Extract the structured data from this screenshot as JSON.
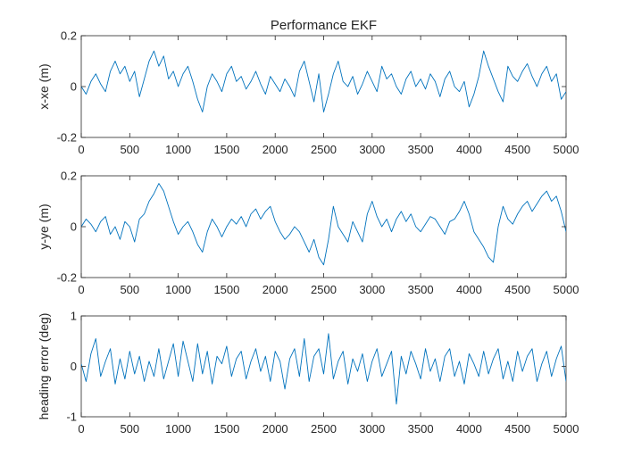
{
  "chart_data": [
    {
      "type": "line",
      "title": "Performance EKF",
      "xlabel": "",
      "ylabel": "x-xe (m)",
      "xlim": [
        0,
        5000
      ],
      "ylim": [
        -0.2,
        0.2
      ],
      "xticks": [
        0,
        500,
        1000,
        1500,
        2000,
        2500,
        3000,
        3500,
        4000,
        4500,
        5000
      ],
      "xtick_labels": [
        "0",
        "500",
        "1000",
        "1500",
        "2000",
        "2500",
        "3000",
        "3500",
        "4000",
        "4500",
        "5000"
      ],
      "yticks": [
        -0.2,
        0,
        0.2
      ],
      "ytick_labels": [
        "-0.2",
        "0",
        "0.2"
      ],
      "grid": false,
      "series": [
        {
          "color": "#0072BD",
          "x": [
            0,
            50,
            100,
            150,
            200,
            250,
            300,
            350,
            400,
            450,
            500,
            550,
            600,
            650,
            700,
            750,
            800,
            850,
            900,
            950,
            1000,
            1050,
            1100,
            1150,
            1200,
            1250,
            1300,
            1350,
            1400,
            1450,
            1500,
            1550,
            1600,
            1650,
            1700,
            1750,
            1800,
            1850,
            1900,
            1950,
            2000,
            2050,
            2100,
            2150,
            2200,
            2250,
            2300,
            2350,
            2400,
            2450,
            2500,
            2550,
            2600,
            2650,
            2700,
            2750,
            2800,
            2850,
            2900,
            2950,
            3000,
            3050,
            3100,
            3150,
            3200,
            3250,
            3300,
            3350,
            3400,
            3450,
            3500,
            3550,
            3600,
            3650,
            3700,
            3750,
            3800,
            3850,
            3900,
            3950,
            4000,
            4050,
            4100,
            4150,
            4200,
            4250,
            4300,
            4350,
            4400,
            4450,
            4500,
            4550,
            4600,
            4650,
            4700,
            4750,
            4800,
            4850,
            4900,
            4950,
            5000
          ],
          "y": [
            0.0,
            -0.03,
            0.02,
            0.05,
            0.01,
            -0.02,
            0.06,
            0.1,
            0.05,
            0.08,
            0.02,
            0.06,
            -0.04,
            0.03,
            0.1,
            0.14,
            0.08,
            0.12,
            0.03,
            0.06,
            0.0,
            0.05,
            0.08,
            0.02,
            -0.05,
            -0.1,
            0.0,
            0.05,
            0.02,
            -0.02,
            0.05,
            0.08,
            0.02,
            0.04,
            -0.01,
            0.02,
            0.06,
            0.01,
            -0.03,
            0.04,
            0.01,
            -0.02,
            0.03,
            0.0,
            -0.04,
            0.06,
            0.1,
            0.02,
            -0.06,
            0.05,
            -0.1,
            -0.03,
            0.05,
            0.1,
            0.02,
            0.0,
            0.04,
            -0.03,
            0.01,
            0.06,
            0.02,
            -0.02,
            0.08,
            0.03,
            0.05,
            0.0,
            -0.03,
            0.03,
            0.06,
            0.0,
            0.03,
            -0.01,
            0.05,
            0.02,
            -0.04,
            0.03,
            0.06,
            0.0,
            -0.02,
            0.02,
            -0.08,
            -0.03,
            0.04,
            0.14,
            0.08,
            0.03,
            -0.02,
            -0.06,
            0.08,
            0.04,
            0.02,
            0.06,
            0.09,
            0.04,
            0.0,
            0.05,
            0.08,
            0.02,
            0.05,
            -0.05,
            -0.02
          ]
        }
      ]
    },
    {
      "type": "line",
      "title": "",
      "xlabel": "",
      "ylabel": "y-ye (m)",
      "xlim": [
        0,
        5000
      ],
      "ylim": [
        -0.2,
        0.2
      ],
      "xticks": [
        0,
        500,
        1000,
        1500,
        2000,
        2500,
        3000,
        3500,
        4000,
        4500,
        5000
      ],
      "xtick_labels": [
        "0",
        "500",
        "1000",
        "1500",
        "2000",
        "2500",
        "3000",
        "3500",
        "4000",
        "4500",
        "5000"
      ],
      "yticks": [
        -0.2,
        0,
        0.2
      ],
      "ytick_labels": [
        "-0.2",
        "0",
        "0.2"
      ],
      "grid": false,
      "series": [
        {
          "color": "#0072BD",
          "x": [
            0,
            50,
            100,
            150,
            200,
            250,
            300,
            350,
            400,
            450,
            500,
            550,
            600,
            650,
            700,
            750,
            800,
            850,
            900,
            950,
            1000,
            1050,
            1100,
            1150,
            1200,
            1250,
            1300,
            1350,
            1400,
            1450,
            1500,
            1550,
            1600,
            1650,
            1700,
            1750,
            1800,
            1850,
            1900,
            1950,
            2000,
            2050,
            2100,
            2150,
            2200,
            2250,
            2300,
            2350,
            2400,
            2450,
            2500,
            2550,
            2600,
            2650,
            2700,
            2750,
            2800,
            2850,
            2900,
            2950,
            3000,
            3050,
            3100,
            3150,
            3200,
            3250,
            3300,
            3350,
            3400,
            3450,
            3500,
            3550,
            3600,
            3650,
            3700,
            3750,
            3800,
            3850,
            3900,
            3950,
            4000,
            4050,
            4100,
            4150,
            4200,
            4250,
            4300,
            4350,
            4400,
            4450,
            4500,
            4550,
            4600,
            4650,
            4700,
            4750,
            4800,
            4850,
            4900,
            4950,
            5000
          ],
          "y": [
            0.0,
            0.03,
            0.01,
            -0.02,
            0.02,
            0.04,
            -0.03,
            0.0,
            -0.05,
            0.02,
            0.0,
            -0.06,
            0.03,
            0.05,
            0.1,
            0.13,
            0.17,
            0.14,
            0.08,
            0.02,
            -0.03,
            0.0,
            0.02,
            -0.02,
            -0.07,
            -0.1,
            -0.02,
            0.03,
            0.0,
            -0.04,
            0.0,
            0.03,
            0.01,
            0.04,
            0.0,
            0.05,
            0.07,
            0.03,
            0.06,
            0.08,
            0.02,
            -0.02,
            -0.05,
            -0.03,
            0.0,
            -0.02,
            -0.06,
            -0.1,
            -0.05,
            -0.12,
            -0.15,
            -0.05,
            0.08,
            0.0,
            -0.03,
            -0.06,
            0.02,
            -0.02,
            -0.06,
            0.05,
            0.1,
            0.04,
            0.0,
            0.03,
            -0.02,
            0.03,
            0.06,
            0.02,
            0.05,
            0.0,
            -0.02,
            0.01,
            0.04,
            0.03,
            0.0,
            -0.03,
            0.02,
            0.03,
            0.06,
            0.1,
            0.05,
            -0.02,
            -0.05,
            -0.08,
            -0.12,
            -0.14,
            0.0,
            0.08,
            0.03,
            0.01,
            0.05,
            0.08,
            0.1,
            0.06,
            0.09,
            0.12,
            0.14,
            0.1,
            0.12,
            0.06,
            -0.02
          ]
        }
      ]
    },
    {
      "type": "line",
      "title": "",
      "xlabel": "",
      "ylabel": "heading error (deg)",
      "xlim": [
        0,
        5000
      ],
      "ylim": [
        -1,
        1
      ],
      "xticks": [
        0,
        500,
        1000,
        1500,
        2000,
        2500,
        3000,
        3500,
        4000,
        4500,
        5000
      ],
      "xtick_labels": [
        "0",
        "500",
        "1000",
        "1500",
        "2000",
        "2500",
        "3000",
        "3500",
        "4000",
        "4500",
        "5000"
      ],
      "yticks": [
        -1,
        0,
        1
      ],
      "ytick_labels": [
        "-1",
        "0",
        "1"
      ],
      "grid": false,
      "series": [
        {
          "color": "#0072BD",
          "x": [
            0,
            50,
            100,
            150,
            200,
            250,
            300,
            350,
            400,
            450,
            500,
            550,
            600,
            650,
            700,
            750,
            800,
            850,
            900,
            950,
            1000,
            1050,
            1100,
            1150,
            1200,
            1250,
            1300,
            1350,
            1400,
            1450,
            1500,
            1550,
            1600,
            1650,
            1700,
            1750,
            1800,
            1850,
            1900,
            1950,
            2000,
            2050,
            2100,
            2150,
            2200,
            2250,
            2300,
            2350,
            2400,
            2450,
            2500,
            2550,
            2600,
            2650,
            2700,
            2750,
            2800,
            2850,
            2900,
            2950,
            3000,
            3050,
            3100,
            3150,
            3200,
            3250,
            3300,
            3350,
            3400,
            3450,
            3500,
            3550,
            3600,
            3650,
            3700,
            3750,
            3800,
            3850,
            3900,
            3950,
            4000,
            4050,
            4100,
            4150,
            4200,
            4250,
            4300,
            4350,
            4400,
            4450,
            4500,
            4550,
            4600,
            4650,
            4700,
            4750,
            4800,
            4850,
            4900,
            4950,
            5000
          ],
          "y": [
            0.05,
            -0.3,
            0.25,
            0.55,
            -0.2,
            0.1,
            0.35,
            -0.35,
            0.15,
            -0.25,
            0.3,
            -0.15,
            0.2,
            -0.3,
            0.1,
            -0.2,
            0.35,
            -0.25,
            0.1,
            0.45,
            -0.2,
            0.5,
            0.1,
            -0.3,
            0.45,
            -0.15,
            0.3,
            -0.35,
            0.2,
            0.05,
            0.4,
            -0.2,
            0.15,
            0.3,
            -0.25,
            0.1,
            0.35,
            -0.1,
            0.2,
            -0.3,
            0.3,
            0.1,
            -0.45,
            0.15,
            0.35,
            -0.2,
            0.55,
            -0.3,
            0.2,
            0.35,
            -0.15,
            0.65,
            -0.25,
            0.1,
            0.3,
            -0.35,
            0.15,
            -0.1,
            0.25,
            -0.3,
            0.1,
            0.35,
            -0.2,
            0.05,
            0.3,
            -0.75,
            0.2,
            -0.15,
            0.3,
            0.05,
            -0.25,
            0.35,
            -0.1,
            0.15,
            -0.3,
            0.2,
            0.35,
            -0.2,
            0.1,
            -0.35,
            0.25,
            0.05,
            -0.2,
            0.3,
            -0.15,
            0.15,
            0.35,
            -0.25,
            0.1,
            -0.3,
            0.3,
            -0.1,
            0.2,
            0.35,
            -0.3,
            0.05,
            0.3,
            -0.2,
            0.15,
            0.4,
            -0.3
          ]
        }
      ]
    }
  ]
}
